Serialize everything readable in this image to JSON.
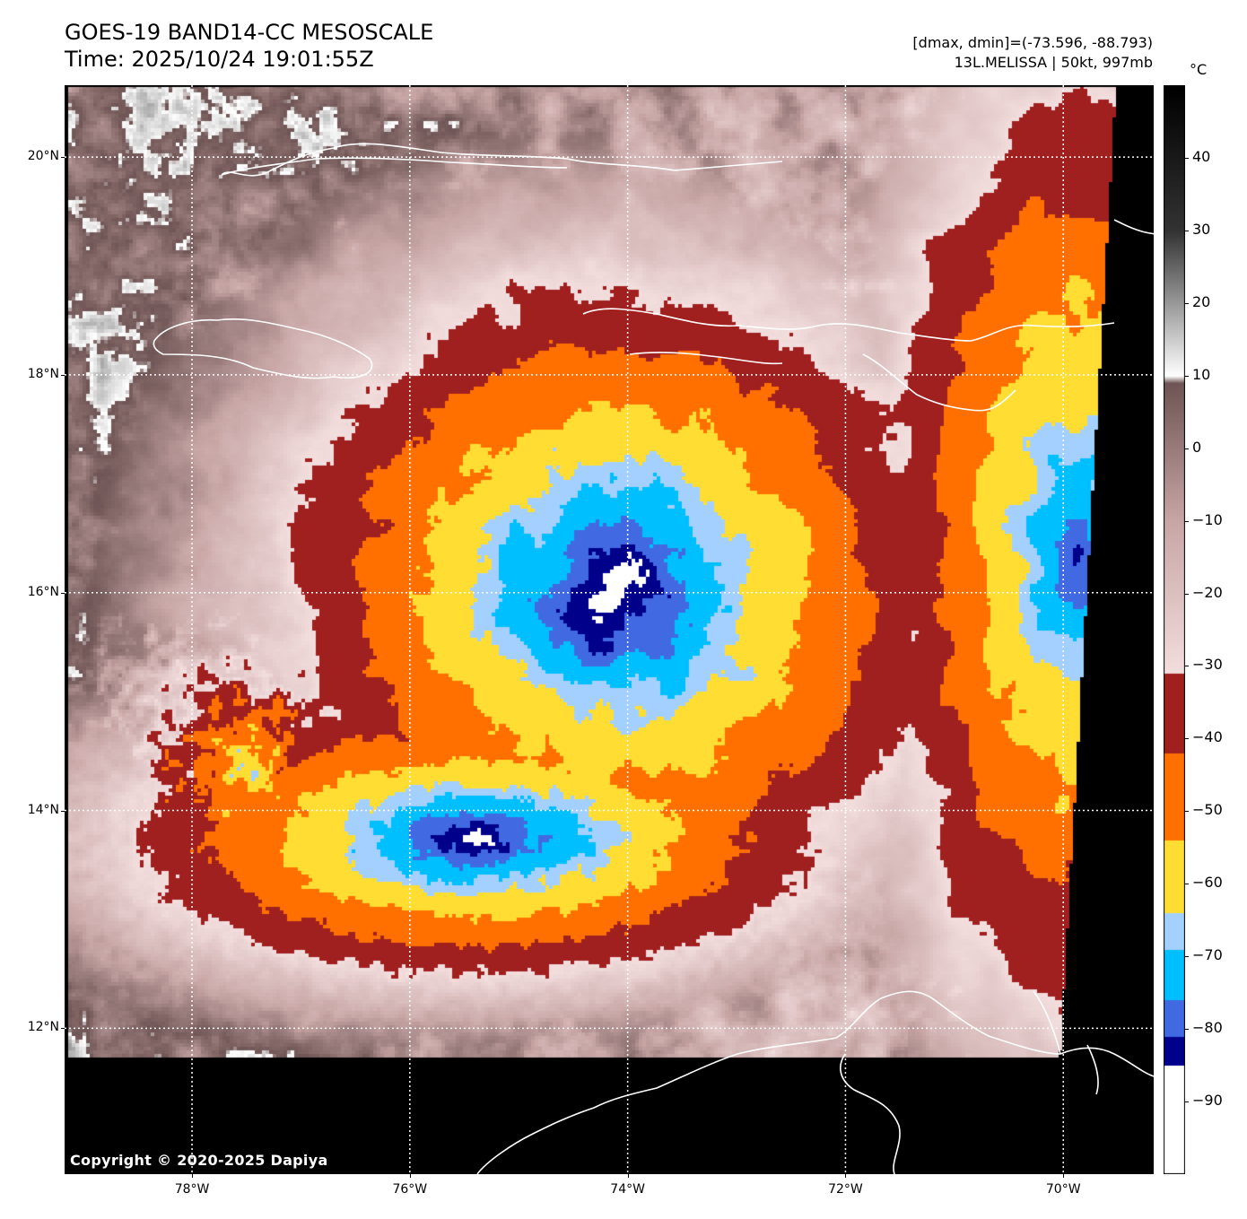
{
  "header": {
    "title": "GOES-19 BAND14-CC MESOSCALE",
    "time": "Time: 2025/10/24 19:01:55Z",
    "range": "[dmax, dmin]=(-73.596, -88.793)",
    "storm": "13L.MELISSA | 50kt, 997mb"
  },
  "axes": {
    "lat_labels": [
      {
        "text": "20°N",
        "lat": 20
      },
      {
        "text": "18°N",
        "lat": 18
      },
      {
        "text": "16°N",
        "lat": 16
      },
      {
        "text": "14°N",
        "lat": 14
      },
      {
        "text": "12°N",
        "lat": 12
      }
    ],
    "lon_labels": [
      {
        "text": "78°W",
        "lon": -78
      },
      {
        "text": "76°W",
        "lon": -76
      },
      {
        "text": "74°W",
        "lon": -74
      },
      {
        "text": "72°W",
        "lon": -72
      },
      {
        "text": "70°W",
        "lon": -70
      }
    ],
    "lat_range": [
      10.66,
      20.66
    ],
    "lon_range": [
      -79.17,
      -69.17
    ]
  },
  "colorbar": {
    "unit": "°C",
    "range": [
      -100,
      50
    ],
    "ticks": [
      {
        "text": "40",
        "value": 40
      },
      {
        "text": "30",
        "value": 30
      },
      {
        "text": "20",
        "value": 20
      },
      {
        "text": "10",
        "value": 10
      },
      {
        "text": "0",
        "value": 0
      },
      {
        "text": "−10",
        "value": -10
      },
      {
        "text": "−20",
        "value": -20
      },
      {
        "text": "−30",
        "value": -30
      },
      {
        "text": "−40",
        "value": -40
      },
      {
        "text": "−50",
        "value": -50
      },
      {
        "text": "−60",
        "value": -60
      },
      {
        "text": "−70",
        "value": -70
      },
      {
        "text": "−80",
        "value": -80
      },
      {
        "text": "−90",
        "value": -90
      }
    ],
    "discrete_bands": [
      {
        "from": -100,
        "to": -85,
        "color": "#ffffff"
      },
      {
        "from": -85,
        "to": -81,
        "color": "#00008b"
      },
      {
        "from": -81,
        "to": -76,
        "color": "#4169e1"
      },
      {
        "from": -76,
        "to": -69,
        "color": "#00bfff"
      },
      {
        "from": -69,
        "to": -64,
        "color": "#a3d0ff"
      },
      {
        "from": -64,
        "to": -54,
        "color": "#ffdd33"
      },
      {
        "from": -54,
        "to": -42,
        "color": "#ff7000"
      },
      {
        "from": -42,
        "to": -31,
        "color": "#a02020"
      }
    ],
    "gradient_stops": [
      {
        "value": -31,
        "color": "#f3dede"
      },
      {
        "value": -10,
        "color": "#c8a6a6"
      },
      {
        "value": 9,
        "color": "#6f5555"
      },
      {
        "value": 10,
        "color": "#ffffff"
      },
      {
        "value": 30,
        "color": "#333333"
      },
      {
        "value": 50,
        "color": "#000000"
      }
    ]
  },
  "storm_center": {
    "lon": -74.1,
    "lat": 16.0
  },
  "copyright": "Copyright © 2020-2025 Dapiya"
}
